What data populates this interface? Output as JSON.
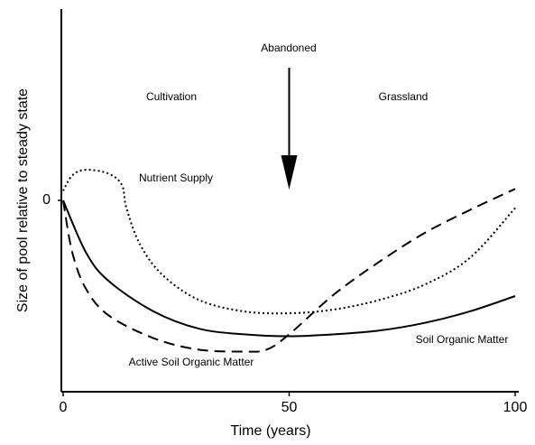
{
  "chart_data": {
    "type": "line",
    "xlabel": "Time (years)",
    "ylabel": "Size of pool relative to steady state",
    "xlim": [
      0,
      100
    ],
    "ylim": [
      -1,
      1
    ],
    "xticks": [
      0,
      50,
      100
    ],
    "yticks": [
      0
    ],
    "annotations": [
      "Cultivation",
      "Abandoned",
      "Grassland"
    ],
    "arrow_x": 50,
    "series": [
      {
        "name": "Soil Organic Matter",
        "color": "#000000",
        "dash": "solid",
        "x": [
          0,
          5,
          10,
          20,
          30,
          40,
          50,
          60,
          70,
          80,
          90,
          100
        ],
        "values": [
          0,
          -0.27,
          -0.42,
          -0.58,
          -0.67,
          -0.7,
          -0.71,
          -0.7,
          -0.68,
          -0.64,
          -0.58,
          -0.5
        ]
      },
      {
        "name": "Active Soil Organic Matter",
        "color": "#000000",
        "dash": "dashed",
        "x": [
          0,
          2,
          5,
          10,
          20,
          30,
          40,
          45,
          50,
          60,
          70,
          80,
          90,
          100
        ],
        "values": [
          0,
          -0.27,
          -0.46,
          -0.6,
          -0.72,
          -0.78,
          -0.79,
          -0.78,
          -0.7,
          -0.49,
          -0.32,
          -0.17,
          -0.05,
          0.06
        ]
      },
      {
        "name": "Nutrient Supply",
        "color": "#000000",
        "dash": "dotted",
        "x": [
          0,
          2,
          5,
          10,
          13,
          14,
          17,
          22,
          30,
          40,
          50,
          60,
          70,
          80,
          90,
          100
        ],
        "values": [
          0.05,
          0.13,
          0.16,
          0.14,
          0.08,
          -0.04,
          -0.23,
          -0.39,
          -0.52,
          -0.58,
          -0.59,
          -0.57,
          -0.52,
          -0.44,
          -0.3,
          -0.04
        ]
      }
    ]
  }
}
